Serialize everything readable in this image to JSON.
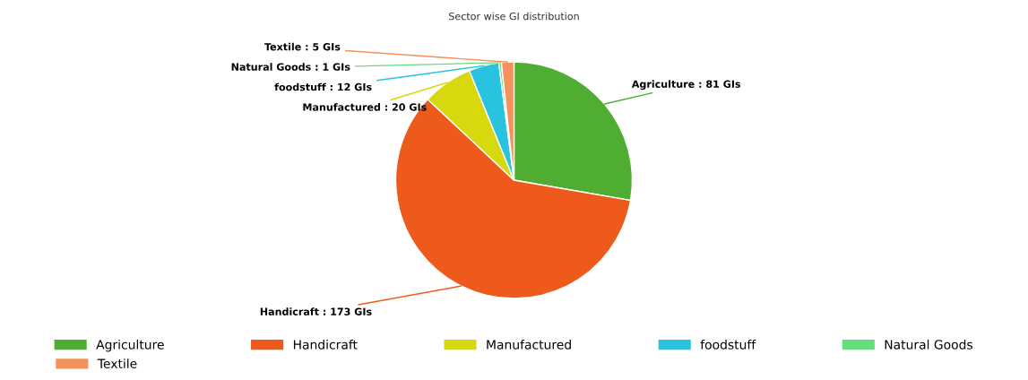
{
  "chart_data": {
    "type": "pie",
    "title": "Sector wise GI distribution",
    "categories": [
      "Agriculture",
      "Handicraft",
      "Manufactured",
      "foodstuff",
      "Natural Goods",
      "Textile"
    ],
    "values": [
      81,
      173,
      20,
      12,
      1,
      5
    ],
    "colors": [
      "#4fae32",
      "#ee5a1c",
      "#d8d80e",
      "#29c3df",
      "#62de7c",
      "#f5915c"
    ],
    "value_labels": [
      "Agriculture : 81 GIs",
      "Handicraft : 173 GIs",
      "Manufactured : 20 GIs",
      "foodstuff : 12 GIs",
      "Natural Goods : 1 GIs",
      "Textile : 5 GIs"
    ],
    "legend": "bottom"
  }
}
